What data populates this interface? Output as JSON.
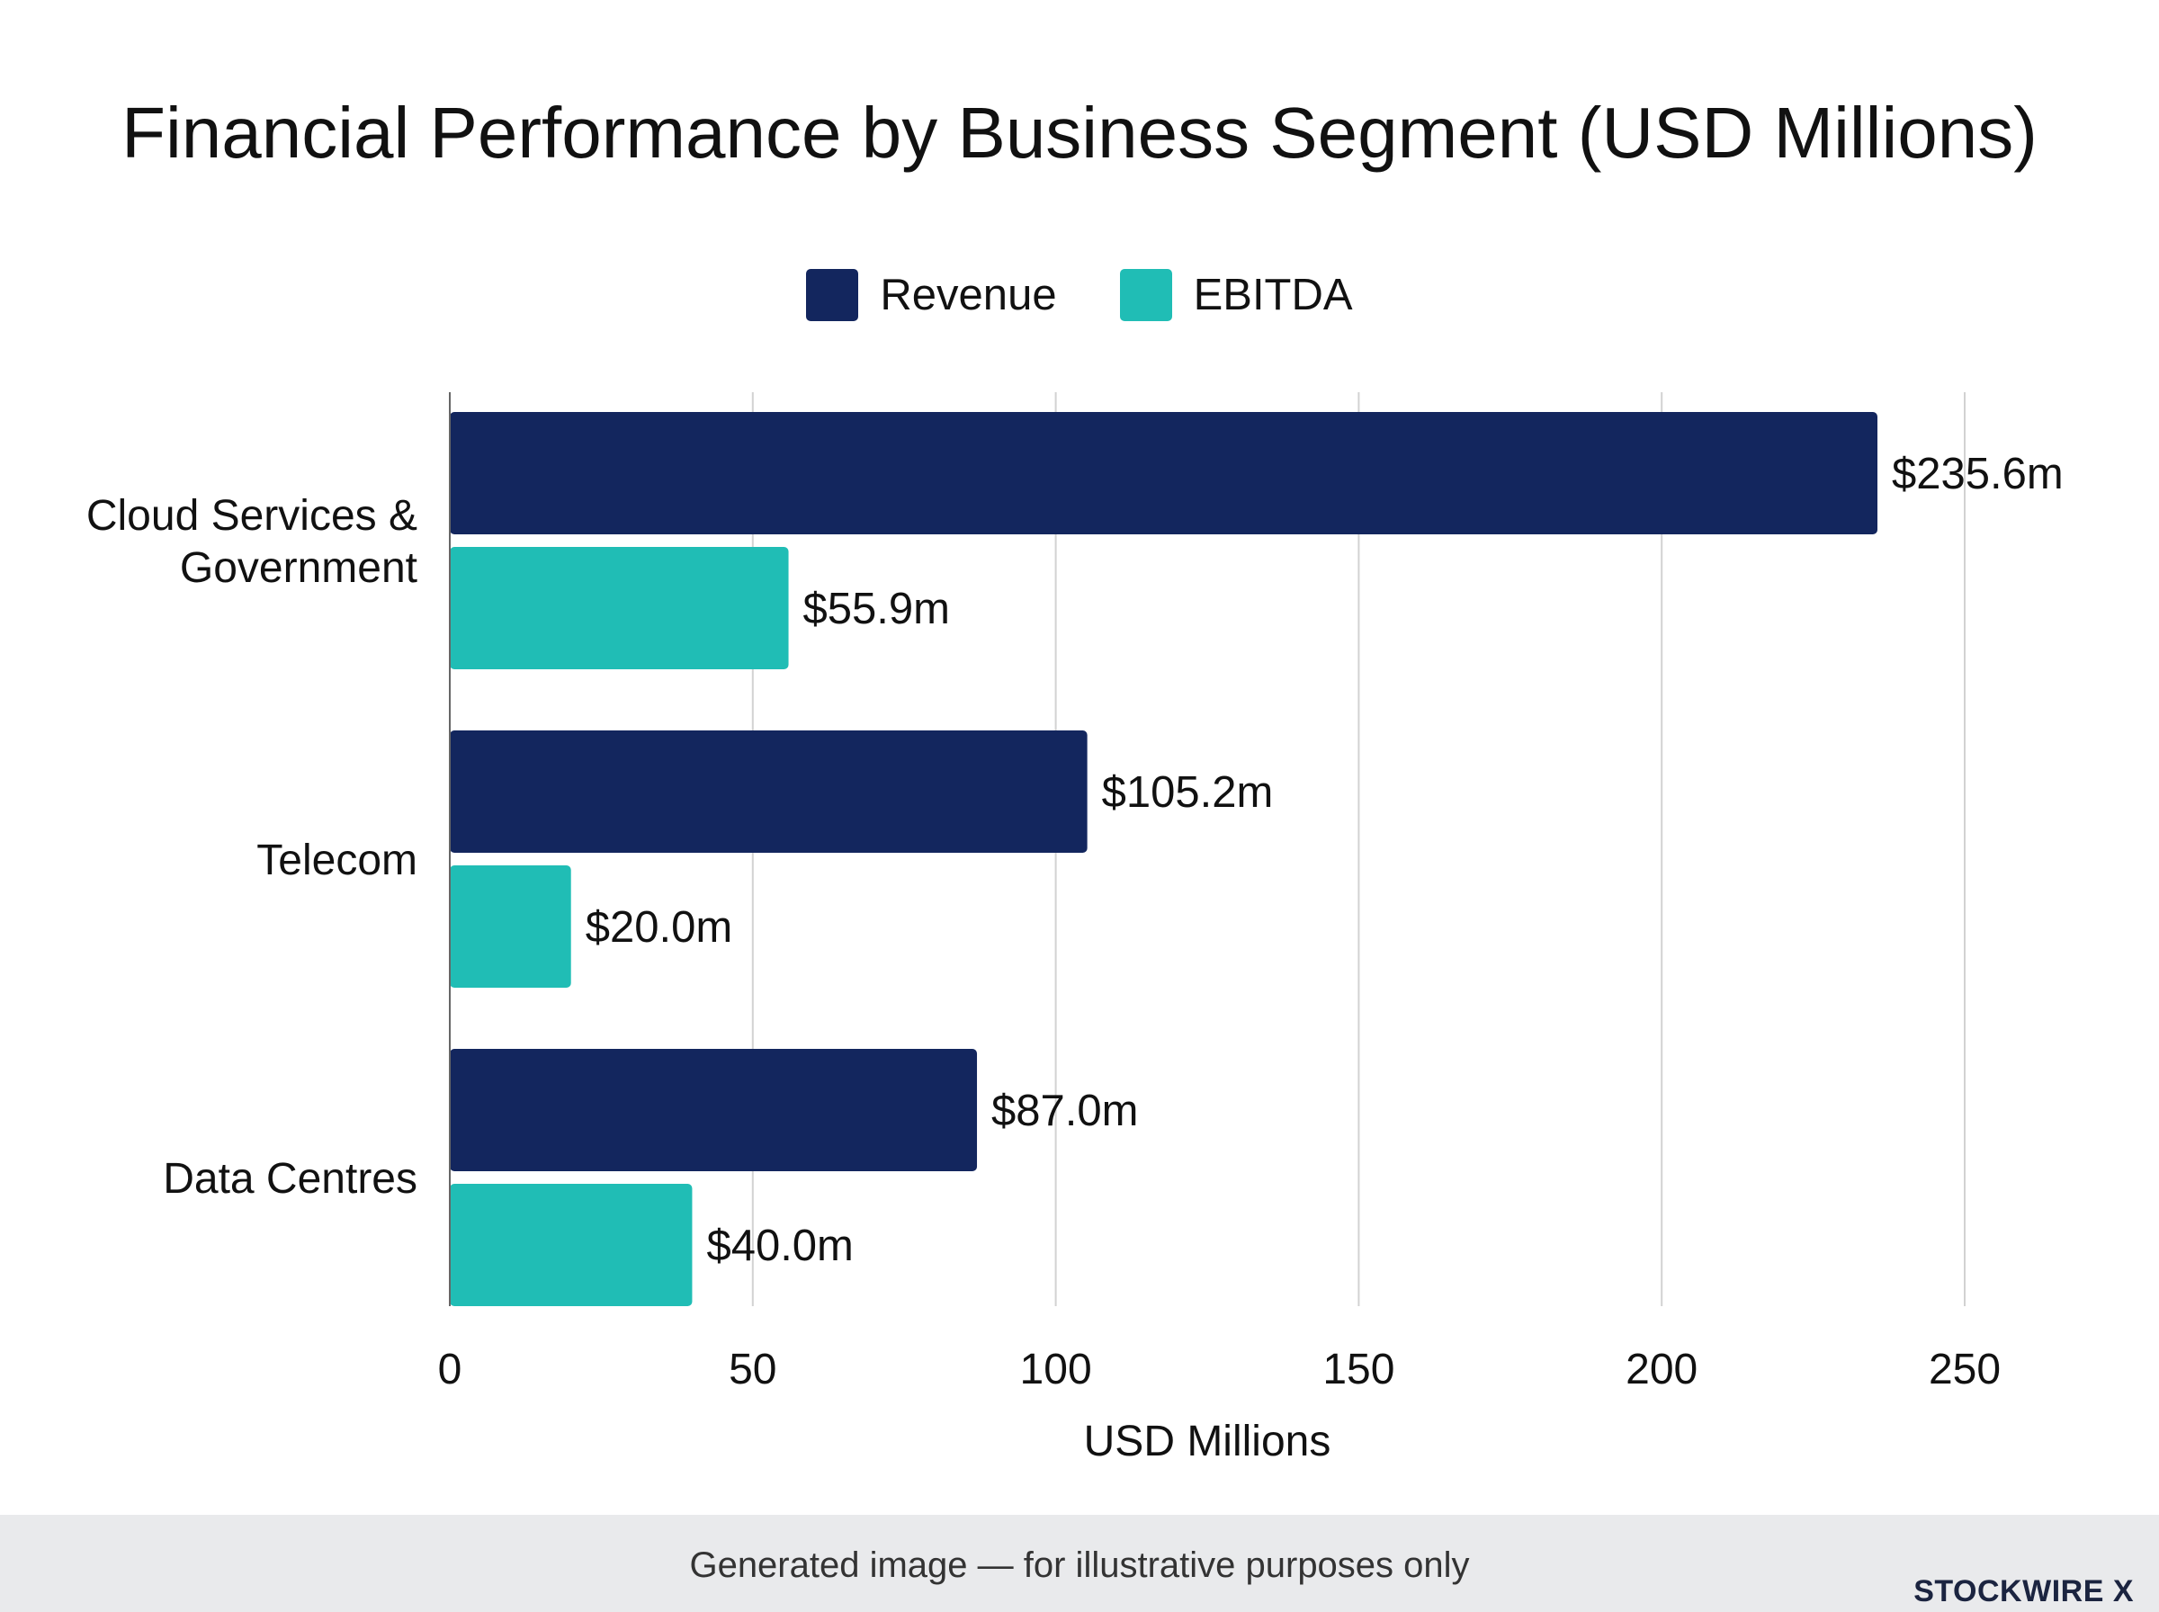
{
  "chart_data": {
    "type": "bar",
    "orientation": "horizontal",
    "title": "Financial Performance by Business Segment (USD Millions)",
    "xlabel": "USD Millions",
    "ylabel": "",
    "categories": [
      "Cloud Services & Government",
      "Telecom",
      "Data Centres"
    ],
    "category_lines": [
      [
        "Cloud Services &",
        "Government"
      ],
      [
        "Telecom"
      ],
      [
        "Data Centres"
      ]
    ],
    "series": [
      {
        "name": "Revenue",
        "color": "#13265e",
        "values": [
          235.6,
          105.2,
          87.0
        ],
        "labels": [
          "$235.6m",
          "$105.2m",
          "$87.0m"
        ]
      },
      {
        "name": "EBITDA",
        "color": "#20bdb5",
        "values": [
          55.9,
          20.0,
          40.0
        ],
        "labels": [
          "$55.9m",
          "$20.0m",
          "$40.0m"
        ]
      }
    ],
    "xlim": [
      0,
      250
    ],
    "xticks": [
      0,
      50,
      100,
      150,
      200,
      250
    ],
    "grid": true,
    "legend_position": "top-center"
  },
  "footer": {
    "note": "Generated image — for illustrative purposes only",
    "brand": "STOCKWIRE X"
  }
}
